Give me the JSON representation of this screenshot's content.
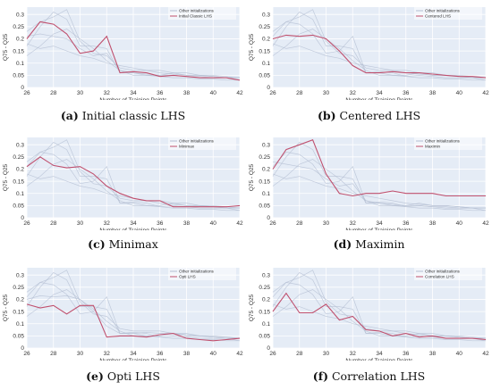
{
  "colors": {
    "plot_bg": "#e5ecf6",
    "grid": "#ffffff",
    "other_line": "#b3bdd1",
    "highlight": "#c0506e"
  },
  "chart_data": [
    {
      "type": "line",
      "caption_letter": "(a)",
      "caption_text": "Initial classic LHS",
      "xlabel": "Number of Training Points",
      "ylabel": "Q75 - Q25",
      "xlim": [
        26,
        42
      ],
      "ylim": [
        0,
        0.33
      ],
      "xticks": [
        26,
        28,
        30,
        32,
        34,
        36,
        38,
        40,
        42
      ],
      "yticks": [
        0,
        0.05,
        0.1,
        0.15,
        0.2,
        0.25,
        0.3
      ],
      "legend": {
        "position": "top-right",
        "other_label": "Other initializations",
        "highlight_label": "Initial Classic LHS"
      },
      "x": [
        26,
        27,
        28,
        29,
        30,
        31,
        32,
        33,
        34,
        35,
        36,
        37,
        38,
        39,
        40,
        41,
        42
      ],
      "highlight_series": {
        "name": "Initial Classic LHS",
        "values": [
          0.2,
          0.27,
          0.26,
          0.22,
          0.14,
          0.15,
          0.21,
          0.06,
          0.065,
          0.06,
          0.045,
          0.05,
          0.045,
          0.04,
          0.04,
          0.04,
          0.03
        ]
      },
      "other_series": [
        {
          "values": [
            0.21,
            0.22,
            0.21,
            0.2,
            0.16,
            0.13,
            0.14,
            0.07,
            0.06,
            0.055,
            0.05,
            0.05,
            0.045,
            0.045,
            0.04,
            0.04,
            0.04
          ]
        },
        {
          "values": [
            0.17,
            0.25,
            0.31,
            0.28,
            0.17,
            0.17,
            0.16,
            0.06,
            0.06,
            0.05,
            0.05,
            0.06,
            0.05,
            0.05,
            0.045,
            0.04,
            0.04
          ]
        },
        {
          "values": [
            0.23,
            0.27,
            0.29,
            0.32,
            0.19,
            0.14,
            0.13,
            0.08,
            0.07,
            0.07,
            0.07,
            0.06,
            0.06,
            0.05,
            0.05,
            0.045,
            0.04
          ]
        },
        {
          "values": [
            0.13,
            0.17,
            0.22,
            0.24,
            0.2,
            0.16,
            0.11,
            0.07,
            0.05,
            0.05,
            0.045,
            0.04,
            0.04,
            0.035,
            0.035,
            0.03,
            0.03
          ]
        },
        {
          "values": [
            0.18,
            0.16,
            0.17,
            0.15,
            0.13,
            0.12,
            0.1,
            0.09,
            0.08,
            0.07,
            0.06,
            0.055,
            0.05,
            0.05,
            0.045,
            0.04,
            0.04
          ]
        }
      ]
    },
    {
      "type": "line",
      "caption_letter": "(b)",
      "caption_text": "Centered LHS",
      "xlabel": "Number of Training Points",
      "ylabel": "Q75 - Q25",
      "xlim": [
        26,
        42
      ],
      "ylim": [
        0,
        0.33
      ],
      "xticks": [
        26,
        28,
        30,
        32,
        34,
        36,
        38,
        40,
        42
      ],
      "yticks": [
        0,
        0.05,
        0.1,
        0.15,
        0.2,
        0.25,
        0.3
      ],
      "legend": {
        "position": "top-right",
        "other_label": "Other initializations",
        "highlight_label": "Centered LHS"
      },
      "x": [
        26,
        27,
        28,
        29,
        30,
        31,
        32,
        33,
        34,
        35,
        36,
        37,
        38,
        39,
        40,
        41,
        42
      ],
      "highlight_series": {
        "name": "Centered LHS",
        "values": [
          0.2,
          0.215,
          0.21,
          0.215,
          0.2,
          0.15,
          0.09,
          0.06,
          0.06,
          0.065,
          0.06,
          0.06,
          0.055,
          0.05,
          0.045,
          0.045,
          0.04
        ]
      },
      "other_series": [
        {
          "values": [
            0.21,
            0.27,
            0.26,
            0.22,
            0.14,
            0.15,
            0.21,
            0.06,
            0.065,
            0.06,
            0.045,
            0.05,
            0.045,
            0.04,
            0.04,
            0.04,
            0.03
          ]
        },
        {
          "values": [
            0.17,
            0.25,
            0.31,
            0.28,
            0.17,
            0.17,
            0.16,
            0.06,
            0.06,
            0.05,
            0.05,
            0.06,
            0.05,
            0.05,
            0.045,
            0.04,
            0.04
          ]
        },
        {
          "values": [
            0.23,
            0.27,
            0.29,
            0.32,
            0.19,
            0.14,
            0.13,
            0.08,
            0.07,
            0.07,
            0.07,
            0.06,
            0.06,
            0.05,
            0.05,
            0.045,
            0.04
          ]
        },
        {
          "values": [
            0.13,
            0.17,
            0.22,
            0.24,
            0.2,
            0.16,
            0.11,
            0.07,
            0.05,
            0.05,
            0.045,
            0.04,
            0.04,
            0.035,
            0.035,
            0.03,
            0.03
          ]
        },
        {
          "values": [
            0.18,
            0.16,
            0.17,
            0.15,
            0.13,
            0.12,
            0.1,
            0.09,
            0.08,
            0.07,
            0.06,
            0.055,
            0.05,
            0.05,
            0.045,
            0.04,
            0.04
          ]
        }
      ]
    },
    {
      "type": "line",
      "caption_letter": "(c)",
      "caption_text": "Minimax",
      "xlabel": "Number of Training Points",
      "ylabel": "Q75 - Q25",
      "xlim": [
        26,
        42
      ],
      "ylim": [
        0,
        0.33
      ],
      "xticks": [
        26,
        28,
        30,
        32,
        34,
        36,
        38,
        40,
        42
      ],
      "yticks": [
        0,
        0.05,
        0.1,
        0.15,
        0.2,
        0.25,
        0.3
      ],
      "legend": {
        "position": "top-right",
        "other_label": "Other initializations",
        "highlight_label": "Minimax"
      },
      "x": [
        26,
        27,
        28,
        29,
        30,
        31,
        32,
        33,
        34,
        35,
        36,
        37,
        38,
        39,
        40,
        41,
        42
      ],
      "highlight_series": {
        "name": "Minimax",
        "values": [
          0.21,
          0.25,
          0.215,
          0.205,
          0.21,
          0.18,
          0.13,
          0.1,
          0.08,
          0.07,
          0.07,
          0.045,
          0.045,
          0.045,
          0.045,
          0.045,
          0.05
        ]
      },
      "other_series": [
        {
          "values": [
            0.21,
            0.27,
            0.26,
            0.22,
            0.14,
            0.15,
            0.21,
            0.06,
            0.065,
            0.06,
            0.045,
            0.05,
            0.045,
            0.04,
            0.04,
            0.04,
            0.03
          ]
        },
        {
          "values": [
            0.17,
            0.25,
            0.31,
            0.28,
            0.17,
            0.17,
            0.16,
            0.06,
            0.06,
            0.05,
            0.05,
            0.06,
            0.05,
            0.05,
            0.045,
            0.04,
            0.04
          ]
        },
        {
          "values": [
            0.23,
            0.27,
            0.29,
            0.32,
            0.19,
            0.14,
            0.13,
            0.08,
            0.07,
            0.07,
            0.07,
            0.06,
            0.06,
            0.05,
            0.05,
            0.045,
            0.04
          ]
        },
        {
          "values": [
            0.13,
            0.17,
            0.22,
            0.24,
            0.2,
            0.16,
            0.11,
            0.07,
            0.05,
            0.05,
            0.045,
            0.04,
            0.04,
            0.035,
            0.035,
            0.03,
            0.03
          ]
        },
        {
          "values": [
            0.18,
            0.16,
            0.17,
            0.15,
            0.13,
            0.12,
            0.1,
            0.09,
            0.08,
            0.07,
            0.06,
            0.055,
            0.05,
            0.05,
            0.045,
            0.04,
            0.04
          ]
        }
      ]
    },
    {
      "type": "line",
      "caption_letter": "(d)",
      "caption_text": "Maximin",
      "xlabel": "Number of Training Points",
      "ylabel": "Q75 - Q25",
      "xlim": [
        26,
        42
      ],
      "ylim": [
        0,
        0.33
      ],
      "xticks": [
        26,
        28,
        30,
        32,
        34,
        36,
        38,
        40,
        42
      ],
      "yticks": [
        0,
        0.05,
        0.1,
        0.15,
        0.2,
        0.25,
        0.3
      ],
      "legend": {
        "position": "top-right",
        "other_label": "Other initializations",
        "highlight_label": "Maximin"
      },
      "x": [
        26,
        27,
        28,
        29,
        30,
        31,
        32,
        33,
        34,
        35,
        36,
        37,
        38,
        39,
        40,
        41,
        42
      ],
      "highlight_series": {
        "name": "Maximin",
        "values": [
          0.2,
          0.28,
          0.3,
          0.32,
          0.18,
          0.1,
          0.09,
          0.1,
          0.1,
          0.11,
          0.1,
          0.1,
          0.1,
          0.09,
          0.09,
          0.09,
          0.09
        ]
      },
      "other_series": [
        {
          "values": [
            0.21,
            0.27,
            0.26,
            0.22,
            0.14,
            0.15,
            0.21,
            0.06,
            0.065,
            0.06,
            0.045,
            0.05,
            0.045,
            0.04,
            0.04,
            0.04,
            0.03
          ]
        },
        {
          "values": [
            0.17,
            0.25,
            0.31,
            0.28,
            0.17,
            0.17,
            0.16,
            0.06,
            0.06,
            0.05,
            0.05,
            0.06,
            0.05,
            0.05,
            0.045,
            0.04,
            0.04
          ]
        },
        {
          "values": [
            0.23,
            0.22,
            0.21,
            0.2,
            0.16,
            0.13,
            0.14,
            0.07,
            0.06,
            0.055,
            0.05,
            0.05,
            0.045,
            0.045,
            0.04,
            0.04,
            0.04
          ]
        },
        {
          "values": [
            0.13,
            0.17,
            0.22,
            0.24,
            0.2,
            0.16,
            0.11,
            0.07,
            0.05,
            0.05,
            0.045,
            0.04,
            0.04,
            0.035,
            0.035,
            0.03,
            0.03
          ]
        },
        {
          "values": [
            0.18,
            0.16,
            0.17,
            0.15,
            0.13,
            0.12,
            0.1,
            0.09,
            0.08,
            0.07,
            0.06,
            0.055,
            0.05,
            0.05,
            0.045,
            0.04,
            0.04
          ]
        }
      ]
    },
    {
      "type": "line",
      "caption_letter": "(e)",
      "caption_text": "Opti LHS",
      "xlabel": "Number of Training Points",
      "ylabel": "Q75 - Q25",
      "xlim": [
        26,
        42
      ],
      "ylim": [
        0,
        0.33
      ],
      "xticks": [
        26,
        28,
        30,
        32,
        34,
        36,
        38,
        40,
        42
      ],
      "yticks": [
        0,
        0.05,
        0.1,
        0.15,
        0.2,
        0.25,
        0.3
      ],
      "legend": {
        "position": "top-right",
        "other_label": "Other initializations",
        "highlight_label": "Opti LHS"
      },
      "x": [
        26,
        27,
        28,
        29,
        30,
        31,
        32,
        33,
        34,
        35,
        36,
        37,
        38,
        39,
        40,
        41,
        42
      ],
      "highlight_series": {
        "name": "Opti LHS",
        "values": [
          0.18,
          0.165,
          0.175,
          0.14,
          0.175,
          0.175,
          0.045,
          0.05,
          0.05,
          0.045,
          0.055,
          0.06,
          0.04,
          0.035,
          0.03,
          0.035,
          0.04
        ]
      },
      "other_series": [
        {
          "values": [
            0.21,
            0.27,
            0.26,
            0.22,
            0.14,
            0.15,
            0.21,
            0.06,
            0.065,
            0.06,
            0.045,
            0.05,
            0.045,
            0.04,
            0.04,
            0.04,
            0.03
          ]
        },
        {
          "values": [
            0.17,
            0.25,
            0.31,
            0.28,
            0.17,
            0.17,
            0.16,
            0.06,
            0.06,
            0.05,
            0.05,
            0.06,
            0.05,
            0.05,
            0.045,
            0.04,
            0.04
          ]
        },
        {
          "values": [
            0.23,
            0.27,
            0.29,
            0.32,
            0.19,
            0.14,
            0.13,
            0.08,
            0.07,
            0.07,
            0.07,
            0.06,
            0.06,
            0.05,
            0.05,
            0.045,
            0.04
          ]
        },
        {
          "values": [
            0.13,
            0.17,
            0.22,
            0.24,
            0.2,
            0.16,
            0.11,
            0.07,
            0.05,
            0.05,
            0.045,
            0.04,
            0.04,
            0.035,
            0.035,
            0.03,
            0.03
          ]
        },
        {
          "values": [
            0.2,
            0.215,
            0.21,
            0.215,
            0.2,
            0.15,
            0.09,
            0.06,
            0.06,
            0.065,
            0.06,
            0.06,
            0.055,
            0.05,
            0.045,
            0.045,
            0.04
          ]
        }
      ]
    },
    {
      "type": "line",
      "caption_letter": "(f)",
      "caption_text": "Correlation LHS",
      "xlabel": "Number of Training Points",
      "ylabel": "Q75 - Q25",
      "xlim": [
        26,
        42
      ],
      "ylim": [
        0,
        0.33
      ],
      "xticks": [
        26,
        28,
        30,
        32,
        34,
        36,
        38,
        40,
        42
      ],
      "yticks": [
        0,
        0.05,
        0.1,
        0.15,
        0.2,
        0.25,
        0.3
      ],
      "legend": {
        "position": "top-right",
        "other_label": "Other initializations",
        "highlight_label": "Correlation LHS"
      },
      "x": [
        26,
        27,
        28,
        29,
        30,
        31,
        32,
        33,
        34,
        35,
        36,
        37,
        38,
        39,
        40,
        41,
        42
      ],
      "highlight_series": {
        "name": "Correlation LHS",
        "values": [
          0.15,
          0.225,
          0.145,
          0.145,
          0.18,
          0.115,
          0.13,
          0.075,
          0.07,
          0.05,
          0.06,
          0.045,
          0.05,
          0.04,
          0.04,
          0.04,
          0.035
        ]
      },
      "other_series": [
        {
          "values": [
            0.21,
            0.27,
            0.26,
            0.22,
            0.14,
            0.15,
            0.21,
            0.06,
            0.065,
            0.06,
            0.045,
            0.05,
            0.045,
            0.04,
            0.04,
            0.04,
            0.03
          ]
        },
        {
          "values": [
            0.17,
            0.25,
            0.31,
            0.28,
            0.17,
            0.17,
            0.16,
            0.06,
            0.06,
            0.05,
            0.05,
            0.06,
            0.05,
            0.05,
            0.045,
            0.04,
            0.04
          ]
        },
        {
          "values": [
            0.23,
            0.27,
            0.29,
            0.32,
            0.19,
            0.14,
            0.13,
            0.08,
            0.07,
            0.07,
            0.07,
            0.06,
            0.06,
            0.05,
            0.05,
            0.045,
            0.04
          ]
        },
        {
          "values": [
            0.13,
            0.17,
            0.22,
            0.24,
            0.2,
            0.16,
            0.11,
            0.07,
            0.05,
            0.05,
            0.045,
            0.04,
            0.04,
            0.035,
            0.035,
            0.03,
            0.03
          ]
        },
        {
          "values": [
            0.18,
            0.16,
            0.17,
            0.15,
            0.13,
            0.12,
            0.1,
            0.09,
            0.08,
            0.07,
            0.06,
            0.055,
            0.05,
            0.05,
            0.045,
            0.04,
            0.04
          ]
        }
      ]
    }
  ]
}
